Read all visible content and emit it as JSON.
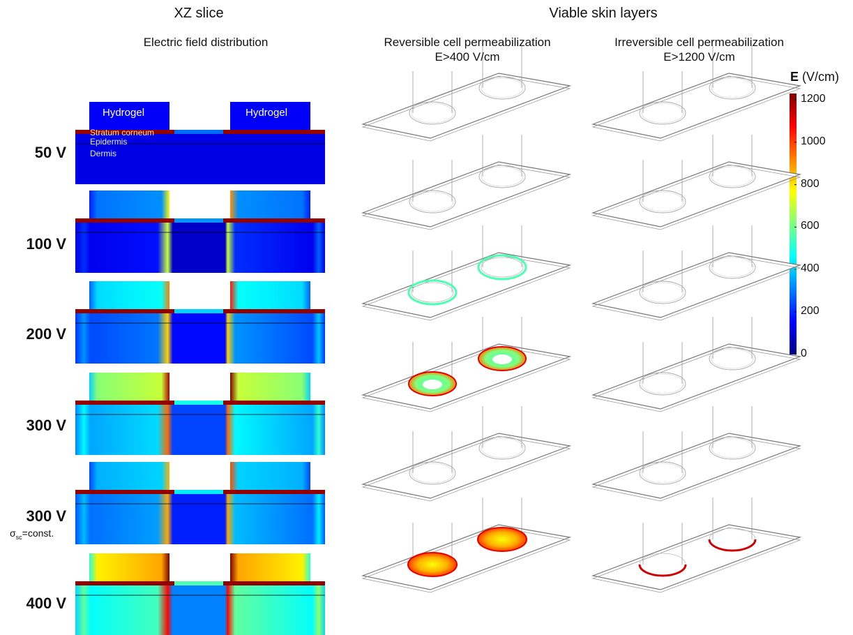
{
  "headers": {
    "xz_slice": "XZ slice",
    "electric_field": "Electric field distribution",
    "viable_skin": "Viable skin layers",
    "reversible_line1": "Reversible cell permeabilization",
    "reversible_line2": "E>400 V/cm",
    "irreversible_line1": "Irreversible cell permeabilization",
    "irreversible_line2": "E>1200 V/cm"
  },
  "layer_labels": {
    "hydrogel": "Hydrogel",
    "stratum_corneum": "Stratum corneum",
    "epidermis": "Epidermis",
    "dermis": "Dermis"
  },
  "rows": [
    {
      "voltage": "50 V",
      "note": "",
      "slice_level": 0.05,
      "gel_level": 0.12,
      "rev": "none",
      "irr": "none"
    },
    {
      "voltage": "100 V",
      "note": "",
      "slice_level": 0.12,
      "gel_level": 0.28,
      "rev": "none",
      "irr": "none"
    },
    {
      "voltage": "200 V",
      "note": "",
      "slice_level": 0.22,
      "gel_level": 0.4,
      "rev": "ring",
      "irr": "none"
    },
    {
      "voltage": "300 V",
      "note": "",
      "slice_level": 0.32,
      "gel_level": 0.6,
      "rev": "disc-hole",
      "irr": "none"
    },
    {
      "voltage": "300 V",
      "note_symbol": "σ",
      "note_sub": "sc",
      "note": "=const.",
      "slice_level": 0.26,
      "gel_level": 0.35,
      "rev": "none",
      "irr": "none"
    },
    {
      "voltage": "400 V",
      "note": "",
      "slice_level": 0.42,
      "gel_level": 0.75,
      "rev": "disc-full",
      "irr": "rim"
    }
  ],
  "colorbar": {
    "title_bold": "E",
    "title_unit": "(V/cm)",
    "ticks": [
      "1200",
      "1000",
      "800",
      "600",
      "400",
      "200",
      "0"
    ],
    "colormap": [
      "#00007f",
      "#0000ff",
      "#007fff",
      "#00ffff",
      "#7fff7f",
      "#ffff00",
      "#ff7f00",
      "#ff0000",
      "#7f0000"
    ]
  }
}
